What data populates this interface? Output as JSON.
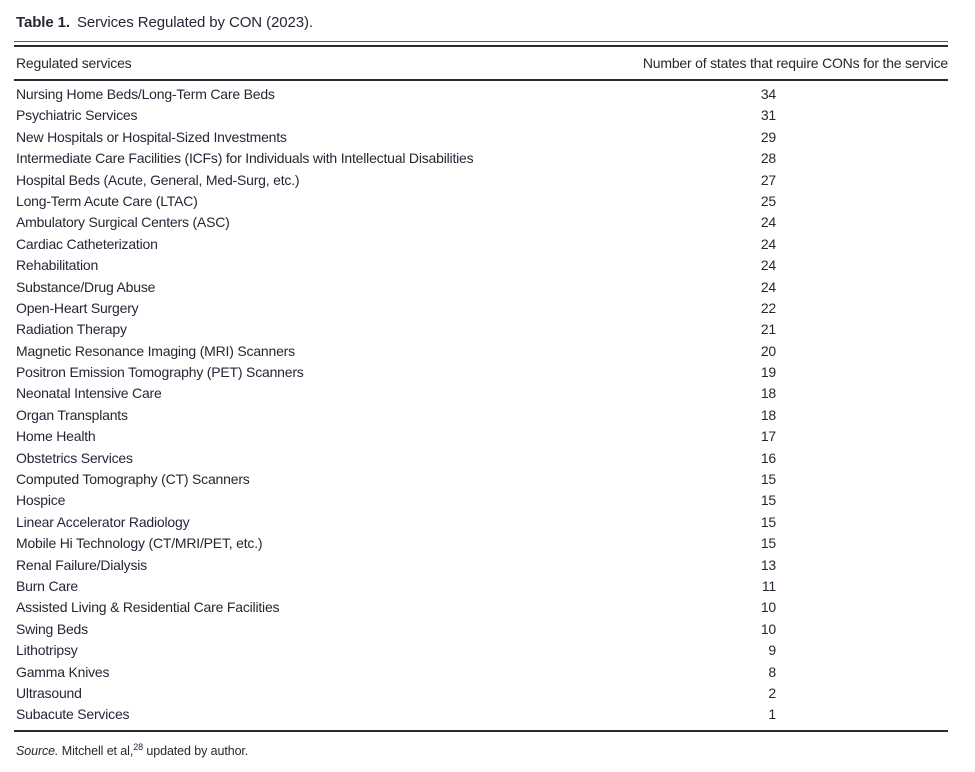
{
  "title": {
    "label": "Table 1.",
    "text": "Services Regulated by CON (2023)."
  },
  "table": {
    "columns": {
      "service": "Regulated services",
      "states": "Number of states that require CONs for the service"
    },
    "rows": [
      {
        "service": "Nursing Home Beds/Long-Term Care Beds",
        "states": 34
      },
      {
        "service": "Psychiatric Services",
        "states": 31
      },
      {
        "service": "New Hospitals or Hospital-Sized Investments",
        "states": 29
      },
      {
        "service": "Intermediate Care Facilities (ICFs) for Individuals with Intellectual Disabilities",
        "states": 28
      },
      {
        "service": "Hospital Beds (Acute, General, Med-Surg, etc.)",
        "states": 27
      },
      {
        "service": "Long-Term Acute Care (LTAC)",
        "states": 25
      },
      {
        "service": "Ambulatory Surgical Centers (ASC)",
        "states": 24
      },
      {
        "service": "Cardiac Catheterization",
        "states": 24
      },
      {
        "service": "Rehabilitation",
        "states": 24
      },
      {
        "service": "Substance/Drug Abuse",
        "states": 24
      },
      {
        "service": "Open-Heart Surgery",
        "states": 22
      },
      {
        "service": "Radiation Therapy",
        "states": 21
      },
      {
        "service": "Magnetic Resonance Imaging (MRI) Scanners",
        "states": 20
      },
      {
        "service": "Positron Emission Tomography (PET) Scanners",
        "states": 19
      },
      {
        "service": "Neonatal Intensive Care",
        "states": 18
      },
      {
        "service": "Organ Transplants",
        "states": 18
      },
      {
        "service": "Home Health",
        "states": 17
      },
      {
        "service": "Obstetrics Services",
        "states": 16
      },
      {
        "service": "Computed Tomography (CT) Scanners",
        "states": 15
      },
      {
        "service": "Hospice",
        "states": 15
      },
      {
        "service": "Linear Accelerator Radiology",
        "states": 15
      },
      {
        "service": "Mobile Hi Technology (CT/MRI/PET, etc.)",
        "states": 15
      },
      {
        "service": "Renal Failure/Dialysis",
        "states": 13
      },
      {
        "service": "Burn Care",
        "states": 11
      },
      {
        "service": "Assisted Living & Residential Care Facilities",
        "states": 10
      },
      {
        "service": "Swing Beds",
        "states": 10
      },
      {
        "service": "Lithotripsy",
        "states": 9
      },
      {
        "service": "Gamma Knives",
        "states": 8
      },
      {
        "service": "Ultrasound",
        "states": 2
      },
      {
        "service": "Subacute Services",
        "states": 1
      }
    ]
  },
  "footer": {
    "source_label": "Source.",
    "source_text": " Mitchell et al,",
    "source_ref": "28",
    "source_suffix": " updated by author."
  },
  "colors": {
    "text": "#242836",
    "rule": "#2b2b30"
  }
}
